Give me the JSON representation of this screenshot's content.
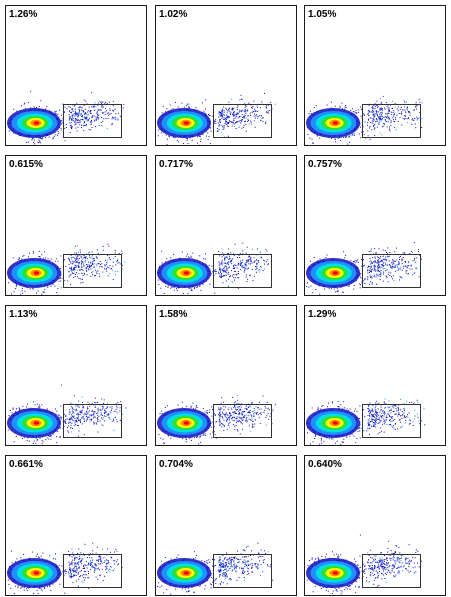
{
  "chart_data": {
    "type": "scatter",
    "layout": "4x3 grid of density plots",
    "title": "",
    "xlabel": "",
    "ylabel": "",
    "grid": false,
    "panels": [
      {
        "gate_percent": "1.26%"
      },
      {
        "gate_percent": "1.02%"
      },
      {
        "gate_percent": "1.05%"
      },
      {
        "gate_percent": "0.615%"
      },
      {
        "gate_percent": "0.717%"
      },
      {
        "gate_percent": "0.757%"
      },
      {
        "gate_percent": "1.13%"
      },
      {
        "gate_percent": "1.58%"
      },
      {
        "gate_percent": "1.29%"
      },
      {
        "gate_percent": "0.661%"
      },
      {
        "gate_percent": "0.704%"
      },
      {
        "gate_percent": "0.640%"
      }
    ],
    "density_colors": [
      "#1010c0",
      "#1e90ff",
      "#00e0e0",
      "#30e030",
      "#ffff00",
      "#ff8c00",
      "#ff0000"
    ]
  }
}
